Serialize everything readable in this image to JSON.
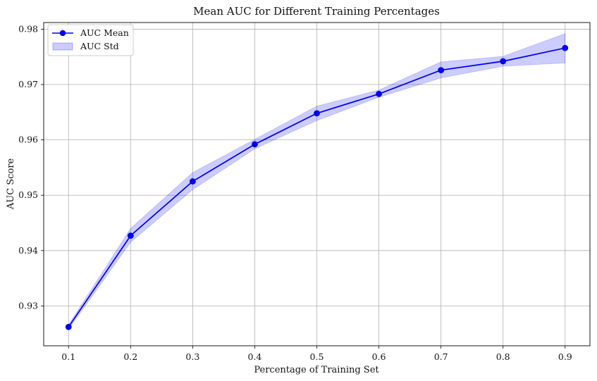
{
  "chart_data": {
    "type": "line",
    "title": "Mean AUC for Different Training Percentages",
    "xlabel": "Percentage of Training Set",
    "ylabel": "AUC Score",
    "x": [
      0.1,
      0.2,
      0.3,
      0.4,
      0.5,
      0.6,
      0.7,
      0.8,
      0.9
    ],
    "xticks": [
      "0.1",
      "0.2",
      "0.3",
      "0.4",
      "0.5",
      "0.6",
      "0.7",
      "0.8",
      "0.9"
    ],
    "yticks": [
      "0.93",
      "0.94",
      "0.95",
      "0.96",
      "0.97",
      "0.98"
    ],
    "xlim": [
      0.06,
      0.94
    ],
    "ylim": [
      0.9228,
      0.9812
    ],
    "grid": true,
    "legend_position": "top-left",
    "series": [
      {
        "name": "AUC Mean",
        "values": [
          0.9262,
          0.9427,
          0.9525,
          0.9592,
          0.9648,
          0.9683,
          0.9726,
          0.9742,
          0.9766
        ],
        "color": "#0000ee"
      }
    ],
    "band": {
      "name": "AUC Std",
      "lower": [
        0.9258,
        0.9415,
        0.951,
        0.9584,
        0.9635,
        0.9677,
        0.9712,
        0.9733,
        0.9739
      ],
      "upper": [
        0.9266,
        0.944,
        0.9541,
        0.9601,
        0.9661,
        0.969,
        0.9741,
        0.9751,
        0.9792
      ],
      "color": "#0000ff",
      "opacity": 0.2
    }
  }
}
